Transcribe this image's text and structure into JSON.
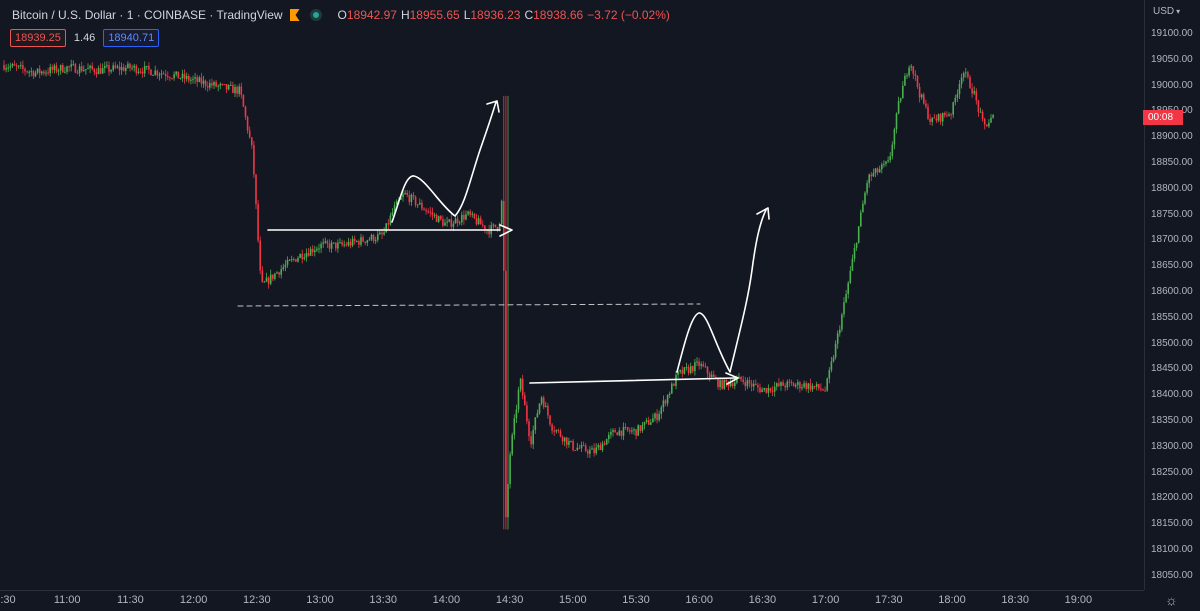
{
  "legend": {
    "title": "Bitcoin / U.S. Dollar · 1 · COINBASE · TradingView",
    "open_label": "O",
    "open": "18942.97",
    "high_label": "H",
    "high": "18955.65",
    "low_label": "L",
    "low": "18936.23",
    "close_label": "C",
    "close": "18938.66",
    "change": "−3.72 (−0.02%)"
  },
  "quote": {
    "bid": "18939.25",
    "spread": "1.46",
    "ask": "18940.71"
  },
  "price_axis": {
    "currency": "USD",
    "ticks": [
      "19100.00",
      "19050.00",
      "19000.00",
      "18950.00",
      "18900.00",
      "18850.00",
      "18800.00",
      "18750.00",
      "18700.00",
      "18650.00",
      "18600.00",
      "18550.00",
      "18500.00",
      "18450.00",
      "18400.00",
      "18350.00",
      "18300.00",
      "18250.00",
      "18200.00",
      "18150.00",
      "18100.00",
      "18050.00"
    ],
    "current_label": "00:08"
  },
  "time_axis": {
    "ticks": [
      ":30",
      "11:00",
      "11:30",
      "12:00",
      "12:30",
      "13:00",
      "13:30",
      "14:00",
      "14:30",
      "15:00",
      "15:30",
      "16:00",
      "16:30",
      "17:00",
      "17:30",
      "18:00",
      "18:30",
      "19:00"
    ]
  },
  "colors": {
    "up": "#26a69a",
    "down": "#ef5350",
    "up_candle": "#4caf50",
    "down_candle": "#f23645",
    "background": "#131722"
  },
  "chart_data": {
    "type": "line",
    "series_style": "candlestick",
    "xlabel": "",
    "ylabel": "",
    "ylim": [
      18050,
      19100
    ],
    "x": [
      "10:30",
      "10:45",
      "11:00",
      "11:15",
      "11:30",
      "11:45",
      "12:00",
      "12:15",
      "12:22",
      "12:28",
      "12:32",
      "12:40",
      "12:50",
      "13:00",
      "13:10",
      "13:20",
      "13:30",
      "13:35",
      "13:40",
      "13:50",
      "14:00",
      "14:10",
      "14:20",
      "14:25",
      "14:27",
      "14:28",
      "14:30",
      "14:35",
      "14:40",
      "14:45",
      "14:50",
      "14:55",
      "15:00",
      "15:10",
      "15:20",
      "15:30",
      "15:40",
      "15:50",
      "16:00",
      "16:10",
      "16:20",
      "16:30",
      "16:40",
      "16:50",
      "17:00",
      "17:05",
      "17:10",
      "17:20",
      "17:30",
      "17:35",
      "17:40",
      "17:45",
      "17:50",
      "18:00",
      "18:05",
      "18:10",
      "18:15",
      "18:20"
    ],
    "close": [
      19040,
      19025,
      19035,
      19030,
      19035,
      19025,
      19010,
      18995,
      18990,
      18870,
      18610,
      18640,
      18670,
      18690,
      18690,
      18700,
      18710,
      18760,
      18790,
      18760,
      18730,
      18750,
      18720,
      18730,
      18800,
      18140,
      18280,
      18430,
      18310,
      18400,
      18340,
      18320,
      18300,
      18290,
      18330,
      18330,
      18360,
      18440,
      18460,
      18420,
      18430,
      18410,
      18420,
      18420,
      18410,
      18500,
      18600,
      18820,
      18850,
      18970,
      19050,
      18980,
      18930,
      18950,
      19030,
      18990,
      18920,
      18940
    ],
    "drawings": [
      {
        "type": "hline",
        "label": "resistance-1"
      },
      {
        "type": "hline-dashed",
        "label": "support-level"
      },
      {
        "type": "hline",
        "label": "resistance-2"
      }
    ]
  }
}
